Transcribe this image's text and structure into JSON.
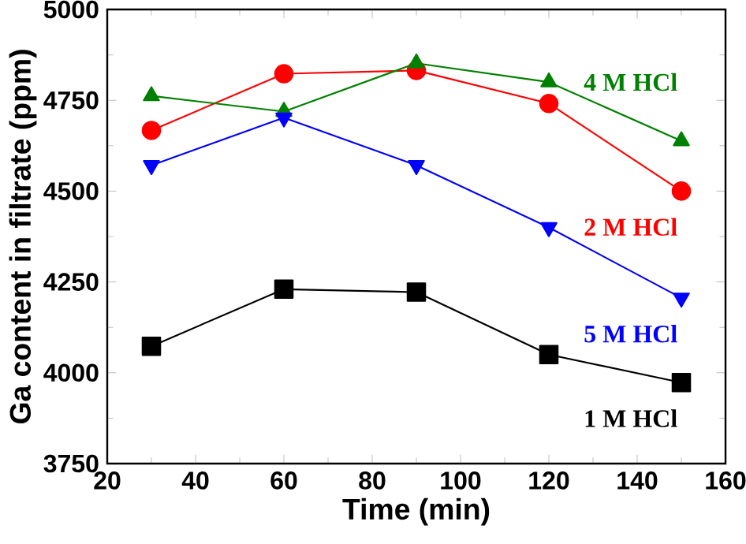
{
  "chart_data": {
    "type": "line",
    "xlabel": "Time (min)",
    "ylabel": "Ga content in filtrate (ppm)",
    "x": [
      30,
      60,
      90,
      120,
      150
    ],
    "series": [
      {
        "name": "1 M HCl",
        "color": "#000000",
        "marker": "square",
        "values": [
          4073,
          4230,
          4222,
          4050,
          3973
        ]
      },
      {
        "name": "2 M HCl",
        "color": "#ff0000",
        "marker": "circle",
        "values": [
          4667,
          4823,
          4832,
          4741,
          4500
        ]
      },
      {
        "name": "4 M HCl",
        "color": "#008000",
        "marker": "triangle",
        "values": [
          4762,
          4719,
          4852,
          4800,
          4638
        ]
      },
      {
        "name": "5 M HCl",
        "color": "#0000ff",
        "marker": "triangle-down",
        "values": [
          4571,
          4702,
          4571,
          4400,
          4206
        ]
      }
    ],
    "xlim": [
      20,
      160
    ],
    "xticks": [
      20,
      40,
      60,
      80,
      100,
      120,
      140,
      160
    ],
    "ylim": [
      3750,
      5000
    ],
    "yticks": [
      3750,
      4000,
      4250,
      4500,
      4750,
      5000
    ],
    "grid": false,
    "legend": false,
    "line_style": "solid"
  }
}
